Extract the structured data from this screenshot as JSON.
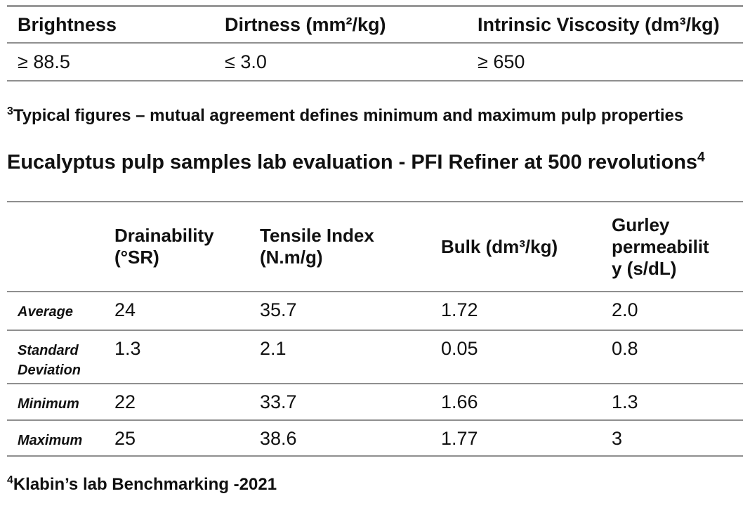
{
  "colors": {
    "background": "#ffffff",
    "text": "#111111",
    "rule_line": "#8f8f8f"
  },
  "spec_table": {
    "columns": [
      "Brightness",
      "Dirtness (mm²/kg)",
      "Intrinsic Viscosity (dm³/kg)"
    ],
    "values": [
      "≥ 88.5",
      "≤ 3.0",
      "≥ 650"
    ]
  },
  "footnote3": {
    "marker": "3",
    "text": "Typical figures – mutual agreement defines minimum and maximum pulp properties"
  },
  "heading": {
    "text": "Eucalyptus pulp samples lab evaluation - PFI Refiner at 500 revolutions",
    "superscript": "4"
  },
  "eval_table": {
    "columns": [
      "",
      "Drainability\n(°SR)",
      "Tensile Index\n(N.m/g)",
      "Bulk (dm³/kg)",
      "Gurley\npermeabilit\ny (s/dL)"
    ],
    "rows": [
      {
        "label": "Average",
        "values": [
          "24",
          "35.7",
          "1.72",
          "2.0"
        ]
      },
      {
        "label": "Standard\nDeviation",
        "values": [
          "1.3",
          "2.1",
          "0.05",
          "0.8"
        ]
      },
      {
        "label": "Minimum",
        "values": [
          "22",
          "33.7",
          "1.66",
          "1.3"
        ]
      },
      {
        "label": "Maximum",
        "values": [
          "25",
          "38.6",
          "1.77",
          "3"
        ]
      }
    ]
  },
  "footnote4": {
    "marker": "4",
    "text": "Klabin’s lab Benchmarking -2021"
  }
}
